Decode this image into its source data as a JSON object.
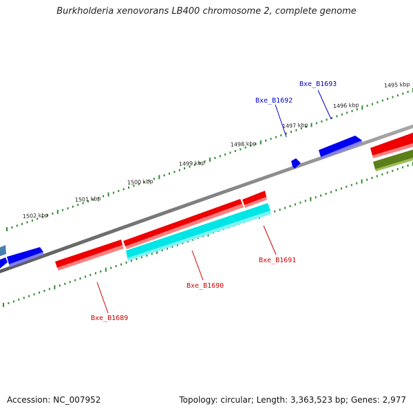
{
  "title": "Burkholderia xenovorans LB400 chromosome 2, complete genome",
  "footer": {
    "accession": "Accession: NC_007952",
    "stats": "Topology: circular; Length: 3,363,523 bp; Genes: 2,977"
  },
  "colors": {
    "backbone": "#7a7a7a",
    "tick": "#2e8b2e",
    "red": "#ee0000",
    "blue": "#0000ee",
    "cyan": "#00e5e5",
    "olive": "#5c7f1a",
    "steel": "#4a7eb0",
    "label_red": "#cc0000",
    "label_blue": "#0000cc"
  },
  "kbp_labels": [
    "1495 kbp",
    "1496 kbp",
    "1497 kbp",
    "1498 kbp",
    "1499 kbp",
    "1500 kbp",
    "1501 kbp",
    "1502 kbp"
  ],
  "gene_labels": {
    "b1693": "Bxe_B1693",
    "b1692": "Bxe_B1692",
    "b1691": "Bxe_B1691",
    "b1690": "Bxe_B1690",
    "b1689": "Bxe_B1689"
  }
}
